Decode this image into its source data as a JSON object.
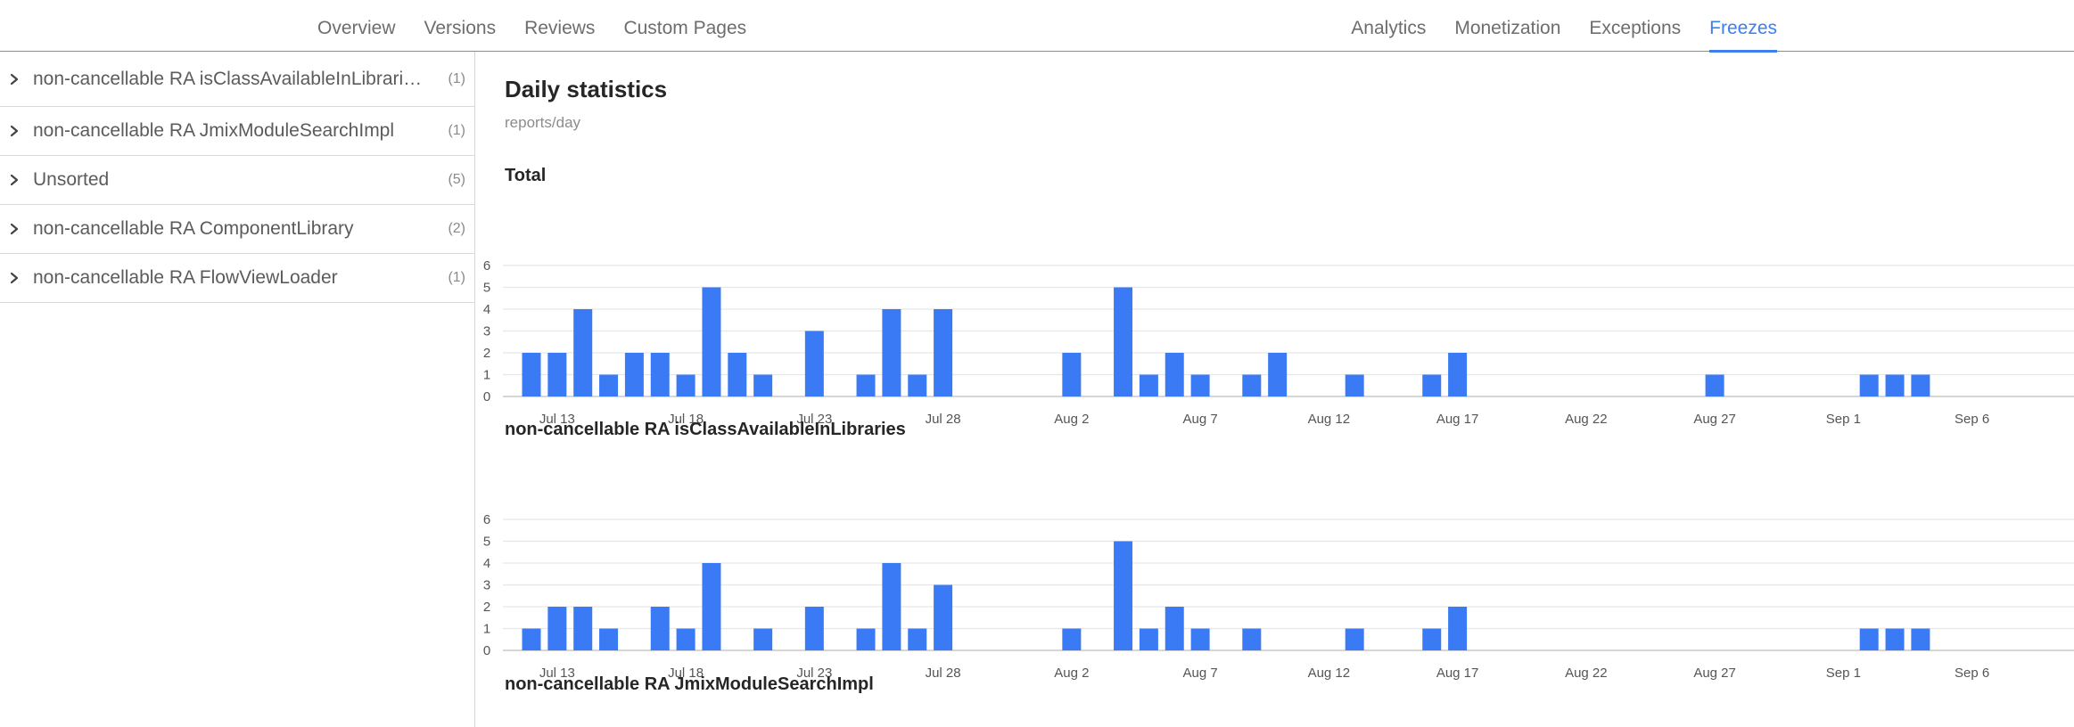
{
  "nav": {
    "left": [
      "Overview",
      "Versions",
      "Reviews",
      "Custom Pages"
    ],
    "right": [
      "Analytics",
      "Monetization",
      "Exceptions",
      "Freezes"
    ],
    "active": "Freezes",
    "accent": "#3d7ff2"
  },
  "sidebar": {
    "items": [
      {
        "label": "non-cancellable RA isClassAvailableInLibrari…",
        "count": "(1)"
      },
      {
        "label": "non-cancellable RA JmixModuleSearchImpl",
        "count": "(1)"
      },
      {
        "label": "Unsorted",
        "count": "(5)"
      },
      {
        "label": "non-cancellable RA ComponentLibrary",
        "count": "(2)"
      },
      {
        "label": "non-cancellable RA FlowViewLoader",
        "count": "(1)"
      }
    ],
    "expand_icon": "chevron-right-icon"
  },
  "main": {
    "title": "Daily statistics",
    "subtitle": "reports/day",
    "third_chart_title": "non-cancellable RA JmixModuleSearchImpl"
  },
  "chart_data": [
    {
      "type": "bar",
      "title": "Total",
      "bar_color": "#3b7af5",
      "x_start": "Jul 12",
      "x_ticks": [
        "Jul 13",
        "Jul 18",
        "Jul 23",
        "Jul 28",
        "Aug 2",
        "Aug 7",
        "Aug 12",
        "Aug 17",
        "Aug 22",
        "Aug 27",
        "Sep 1",
        "Sep 6"
      ],
      "y_ticks": [
        0,
        1,
        2,
        3,
        4,
        5,
        6
      ],
      "ylim": [
        0,
        6
      ],
      "grid": true,
      "categories": [
        "Jul 12",
        "Jul 13",
        "Jul 14",
        "Jul 15",
        "Jul 16",
        "Jul 17",
        "Jul 18",
        "Jul 19",
        "Jul 20",
        "Jul 21",
        "Jul 22",
        "Jul 23",
        "Jul 24",
        "Jul 25",
        "Jul 26",
        "Jul 27",
        "Jul 28",
        "Jul 29",
        "Jul 30",
        "Jul 31",
        "Aug 1",
        "Aug 2",
        "Aug 3",
        "Aug 4",
        "Aug 5",
        "Aug 6",
        "Aug 7",
        "Aug 8",
        "Aug 9",
        "Aug 10",
        "Aug 11",
        "Aug 12",
        "Aug 13",
        "Aug 14",
        "Aug 15",
        "Aug 16",
        "Aug 17",
        "Aug 18",
        "Aug 19",
        "Aug 20",
        "Aug 21",
        "Aug 22",
        "Aug 23",
        "Aug 24",
        "Aug 25",
        "Aug 26",
        "Aug 27",
        "Aug 28",
        "Aug 29",
        "Aug 30",
        "Aug 31",
        "Sep 1",
        "Sep 2",
        "Sep 3",
        "Sep 4"
      ],
      "values": [
        2,
        2,
        4,
        1,
        2,
        2,
        1,
        5,
        2,
        1,
        0,
        3,
        0,
        1,
        4,
        1,
        4,
        0,
        0,
        0,
        0,
        2,
        0,
        5,
        1,
        2,
        1,
        0,
        1,
        2,
        0,
        0,
        1,
        0,
        0,
        1,
        2,
        0,
        0,
        0,
        0,
        0,
        0,
        0,
        0,
        0,
        1,
        0,
        0,
        0,
        0,
        0,
        1,
        1,
        1
      ]
    },
    {
      "type": "bar",
      "title": "non-cancellable RA isClassAvailableInLibraries",
      "bar_color": "#3b7af5",
      "x_start": "Jul 12",
      "x_ticks": [
        "Jul 13",
        "Jul 18",
        "Jul 23",
        "Jul 28",
        "Aug 2",
        "Aug 7",
        "Aug 12",
        "Aug 17",
        "Aug 22",
        "Aug 27",
        "Sep 1",
        "Sep 6"
      ],
      "y_ticks": [
        0,
        1,
        2,
        3,
        4,
        5,
        6
      ],
      "ylim": [
        0,
        6
      ],
      "grid": true,
      "categories": [
        "Jul 12",
        "Jul 13",
        "Jul 14",
        "Jul 15",
        "Jul 16",
        "Jul 17",
        "Jul 18",
        "Jul 19",
        "Jul 20",
        "Jul 21",
        "Jul 22",
        "Jul 23",
        "Jul 24",
        "Jul 25",
        "Jul 26",
        "Jul 27",
        "Jul 28",
        "Jul 29",
        "Jul 30",
        "Jul 31",
        "Aug 1",
        "Aug 2",
        "Aug 3",
        "Aug 4",
        "Aug 5",
        "Aug 6",
        "Aug 7",
        "Aug 8",
        "Aug 9",
        "Aug 10",
        "Aug 11",
        "Aug 12",
        "Aug 13",
        "Aug 14",
        "Aug 15",
        "Aug 16",
        "Aug 17",
        "Aug 18",
        "Aug 19",
        "Aug 20",
        "Aug 21",
        "Aug 22",
        "Aug 23",
        "Aug 24",
        "Aug 25",
        "Aug 26",
        "Aug 27",
        "Aug 28",
        "Aug 29",
        "Aug 30",
        "Aug 31",
        "Sep 1",
        "Sep 2",
        "Sep 3",
        "Sep 4"
      ],
      "values": [
        1,
        2,
        2,
        1,
        0,
        2,
        1,
        4,
        0,
        1,
        0,
        2,
        0,
        1,
        4,
        1,
        3,
        0,
        0,
        0,
        0,
        1,
        0,
        5,
        1,
        2,
        1,
        0,
        1,
        0,
        0,
        0,
        1,
        0,
        0,
        1,
        2,
        0,
        0,
        0,
        0,
        0,
        0,
        0,
        0,
        0,
        0,
        0,
        0,
        0,
        0,
        0,
        1,
        1,
        1
      ]
    }
  ]
}
